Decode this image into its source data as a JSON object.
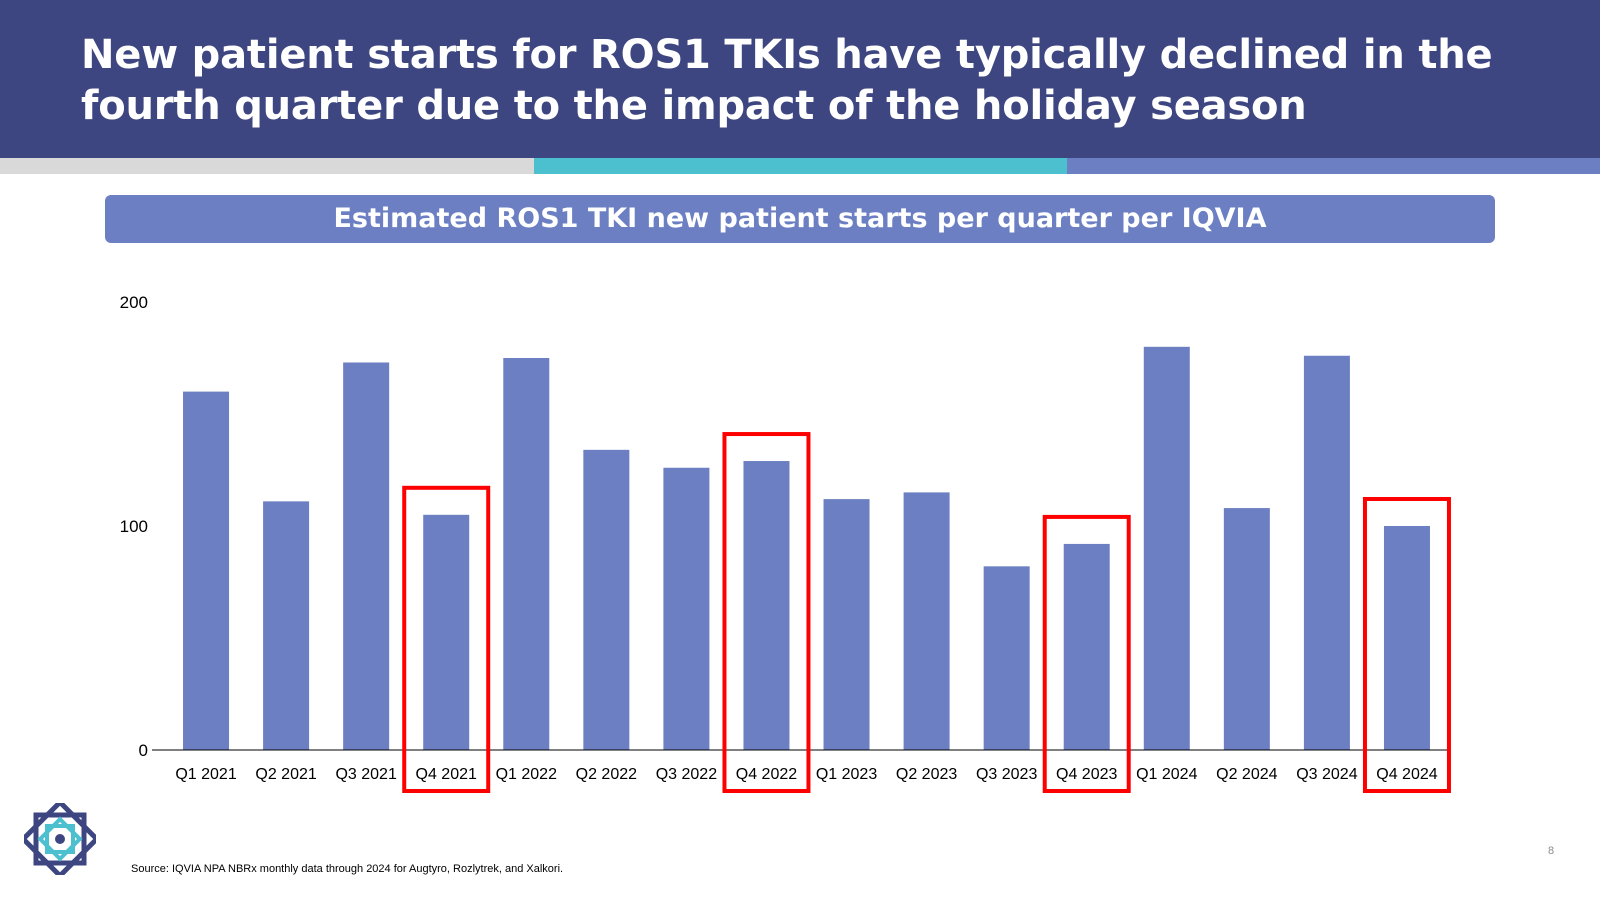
{
  "header": {
    "title": "New patient starts for ROS1 TKIs have typically declined in the fourth quarter due to the impact of the holiday season"
  },
  "chart_data": {
    "type": "bar",
    "title": "Estimated ROS1 TKI new patient starts per quarter per IQVIA",
    "categories": [
      "Q1 2021",
      "Q2 2021",
      "Q3 2021",
      "Q4 2021",
      "Q1 2022",
      "Q2 2022",
      "Q3 2022",
      "Q4 2022",
      "Q1 2023",
      "Q2 2023",
      "Q3 2023",
      "Q4 2023",
      "Q1 2024",
      "Q2 2024",
      "Q3 2024",
      "Q4 2024"
    ],
    "values": [
      160,
      111,
      173,
      105,
      175,
      134,
      126,
      129,
      112,
      115,
      82,
      92,
      180,
      108,
      176,
      100
    ],
    "highlighted": [
      "Q4 2021",
      "Q4 2022",
      "Q4 2023",
      "Q4 2024"
    ],
    "ylim": [
      0,
      200
    ],
    "yticks": [
      0,
      100,
      200
    ],
    "xlabel": "",
    "ylabel": "",
    "grid": false,
    "bar_color": "#6b7fc2",
    "highlight_color": "#ff0000"
  },
  "footer": {
    "source": "Source: IQVIA NPA NBRx monthly data through 2024 for Augtyro, Rozlytrek, and Xalkori.",
    "page_number": "8",
    "logo_icon": "company-logo-icon"
  }
}
